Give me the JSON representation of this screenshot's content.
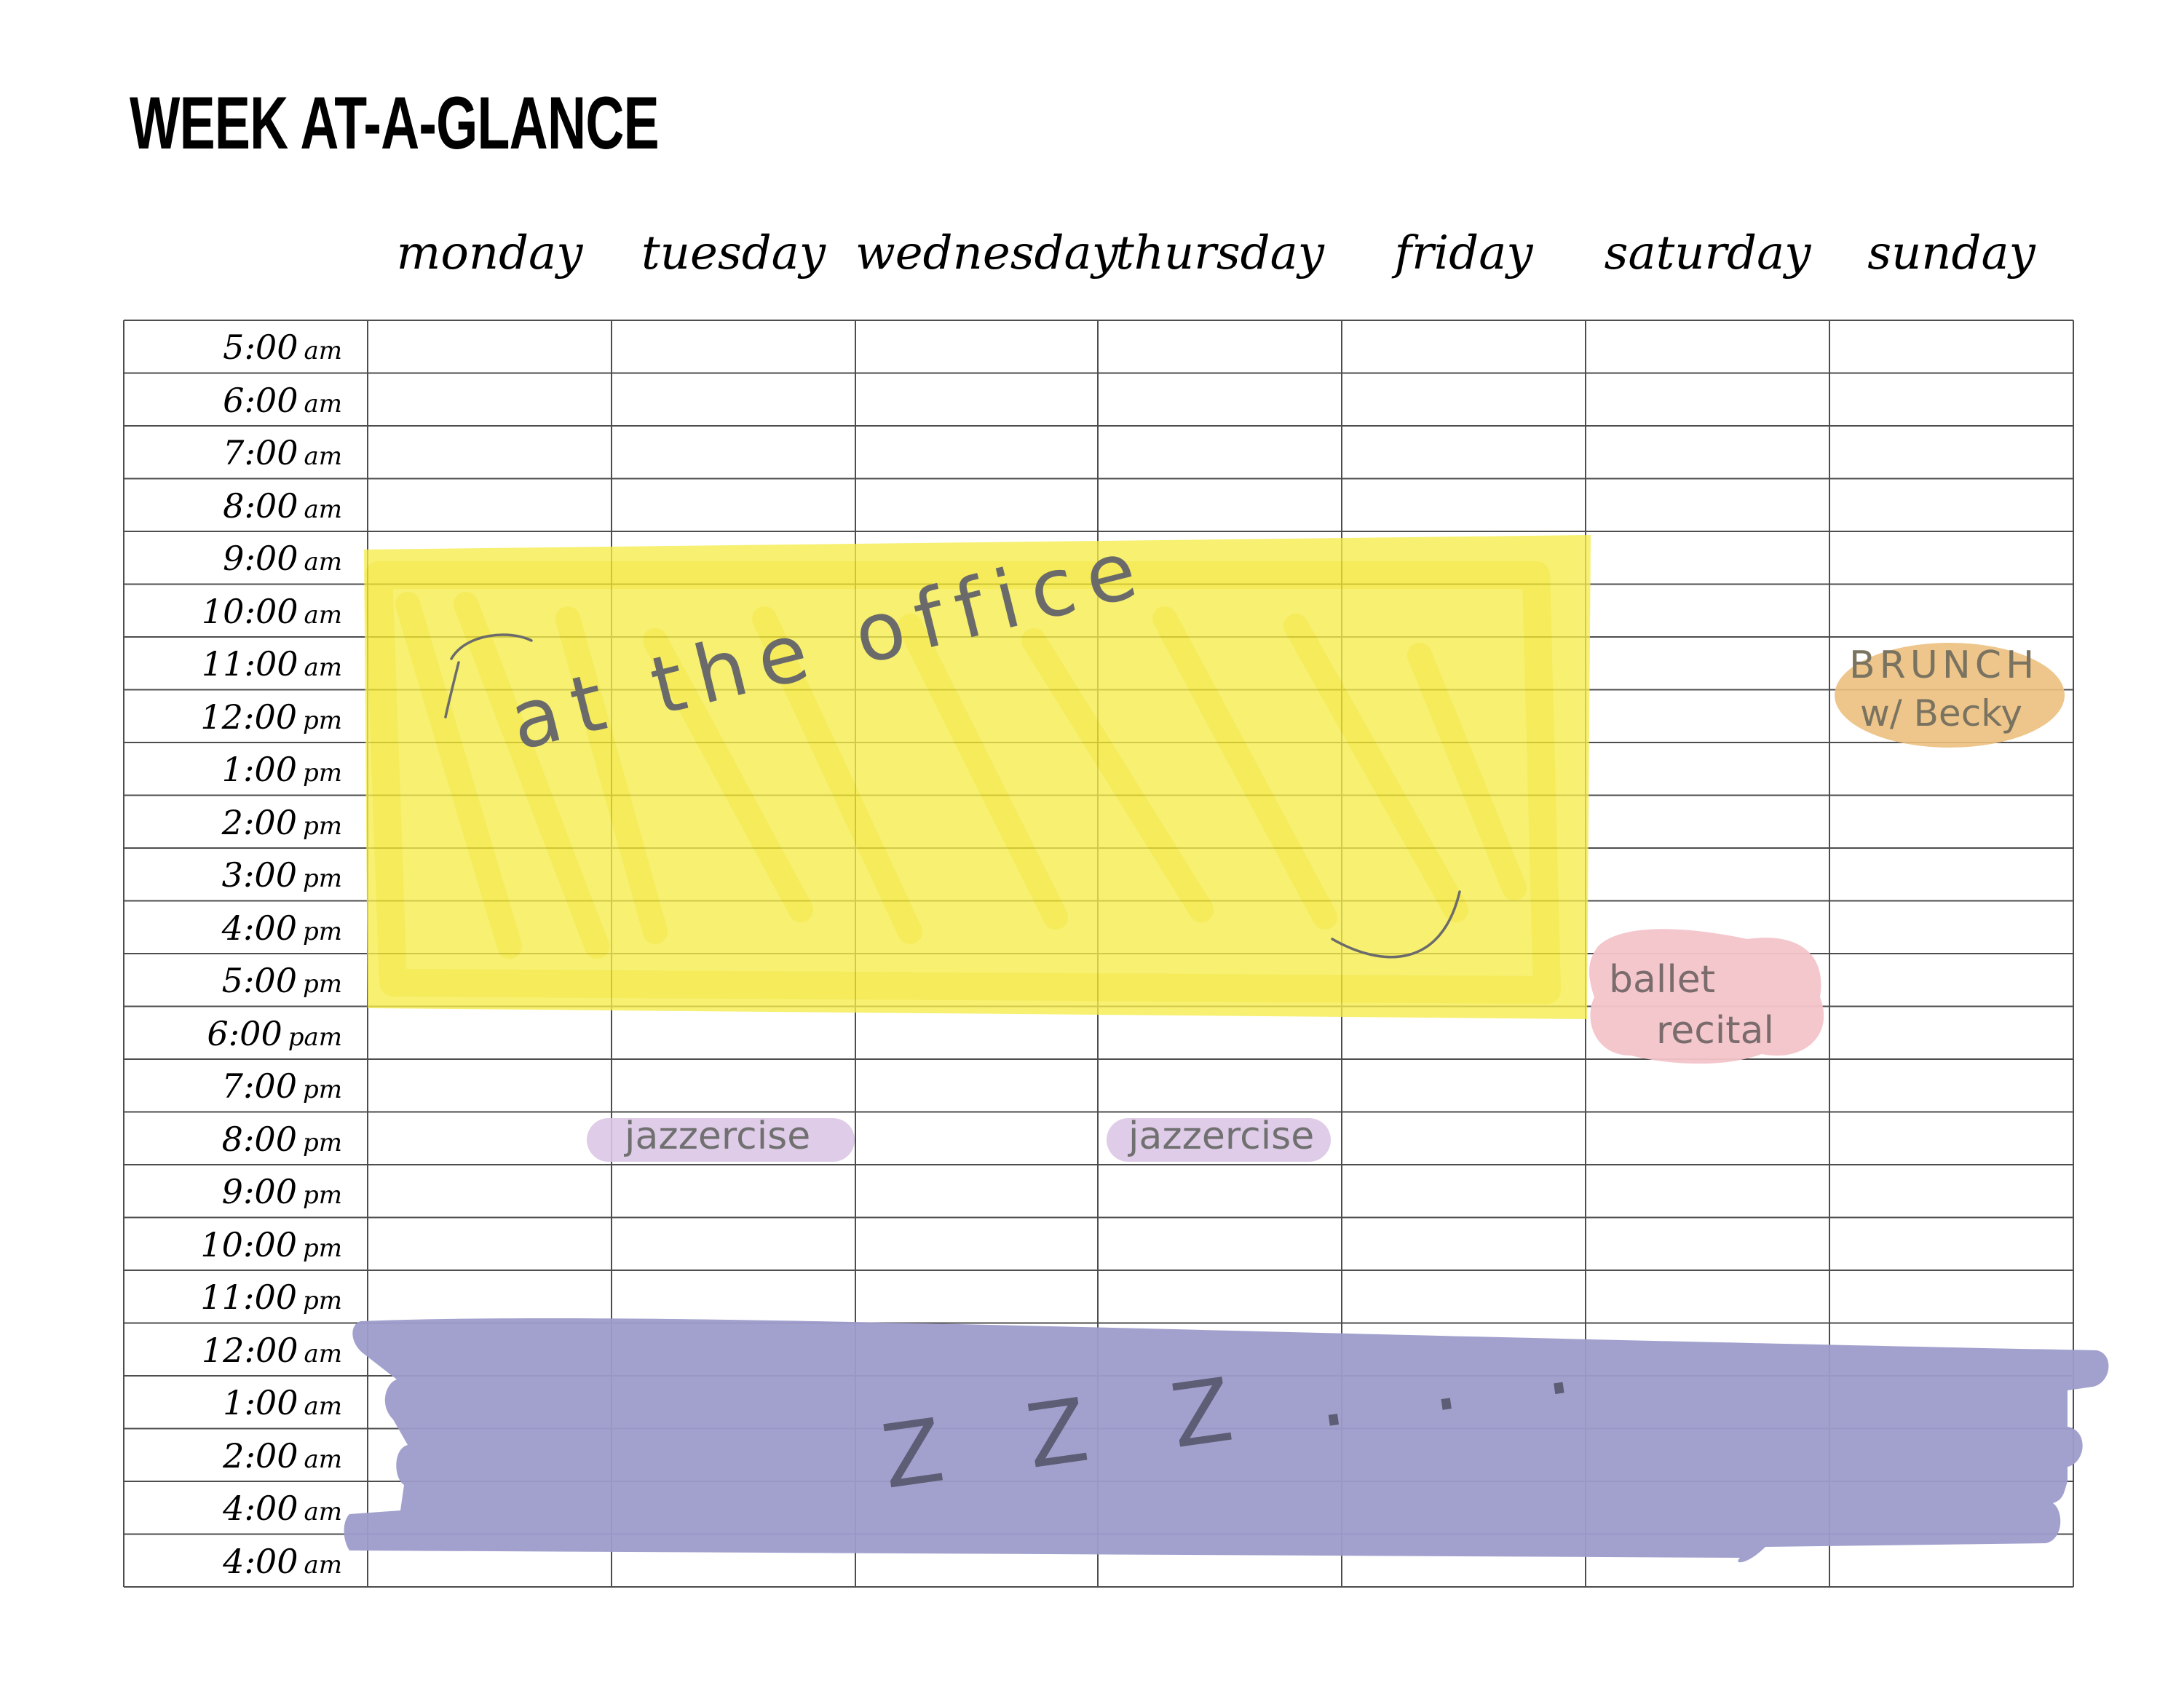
{
  "title": "WEEK AT-A-GLANCE",
  "days": [
    "monday",
    "tuesday",
    "wednesday",
    "thursday",
    "friday",
    "saturday",
    "sunday"
  ],
  "times": [
    {
      "time": "5:00",
      "ampm": "am"
    },
    {
      "time": "6:00",
      "ampm": "am"
    },
    {
      "time": "7:00",
      "ampm": "am"
    },
    {
      "time": "8:00",
      "ampm": "am"
    },
    {
      "time": "9:00",
      "ampm": "am"
    },
    {
      "time": "10:00",
      "ampm": "am"
    },
    {
      "time": "11:00",
      "ampm": "am"
    },
    {
      "time": "12:00",
      "ampm": "pm"
    },
    {
      "time": "1:00",
      "ampm": "pm"
    },
    {
      "time": "2:00",
      "ampm": "pm"
    },
    {
      "time": "3:00",
      "ampm": "pm"
    },
    {
      "time": "4:00",
      "ampm": "pm"
    },
    {
      "time": "5:00",
      "ampm": "pm"
    },
    {
      "time": "6:00",
      "ampm": "pam"
    },
    {
      "time": "7:00",
      "ampm": "pm"
    },
    {
      "time": "8:00",
      "ampm": "pm"
    },
    {
      "time": "9:00",
      "ampm": "pm"
    },
    {
      "time": "10:00",
      "ampm": "pm"
    },
    {
      "time": "11:00",
      "ampm": "pm"
    },
    {
      "time": "12:00",
      "ampm": "am"
    },
    {
      "time": "1:00",
      "ampm": "am"
    },
    {
      "time": "2:00",
      "ampm": "am"
    },
    {
      "time": "4:00",
      "ampm": "am"
    },
    {
      "time": "4:00",
      "ampm": "am"
    }
  ],
  "annotations": {
    "office": {
      "text": "at the office",
      "color": "#f5ec4a"
    },
    "brunch": {
      "line1": "BRUNCH",
      "line2": "w/ Becky",
      "color": "#ecc07e"
    },
    "ballet": {
      "line1": "ballet",
      "line2": "recital",
      "color": "#f3c4c9"
    },
    "jazzercise_tuesday": {
      "text": "jazzercise",
      "color": "#dcc7e6"
    },
    "jazzercise_thursday": {
      "text": "jazzercise",
      "color": "#dcc7e6"
    },
    "sleep": {
      "text": "Z Z Z . . .",
      "color": "#9d9ccb"
    }
  }
}
